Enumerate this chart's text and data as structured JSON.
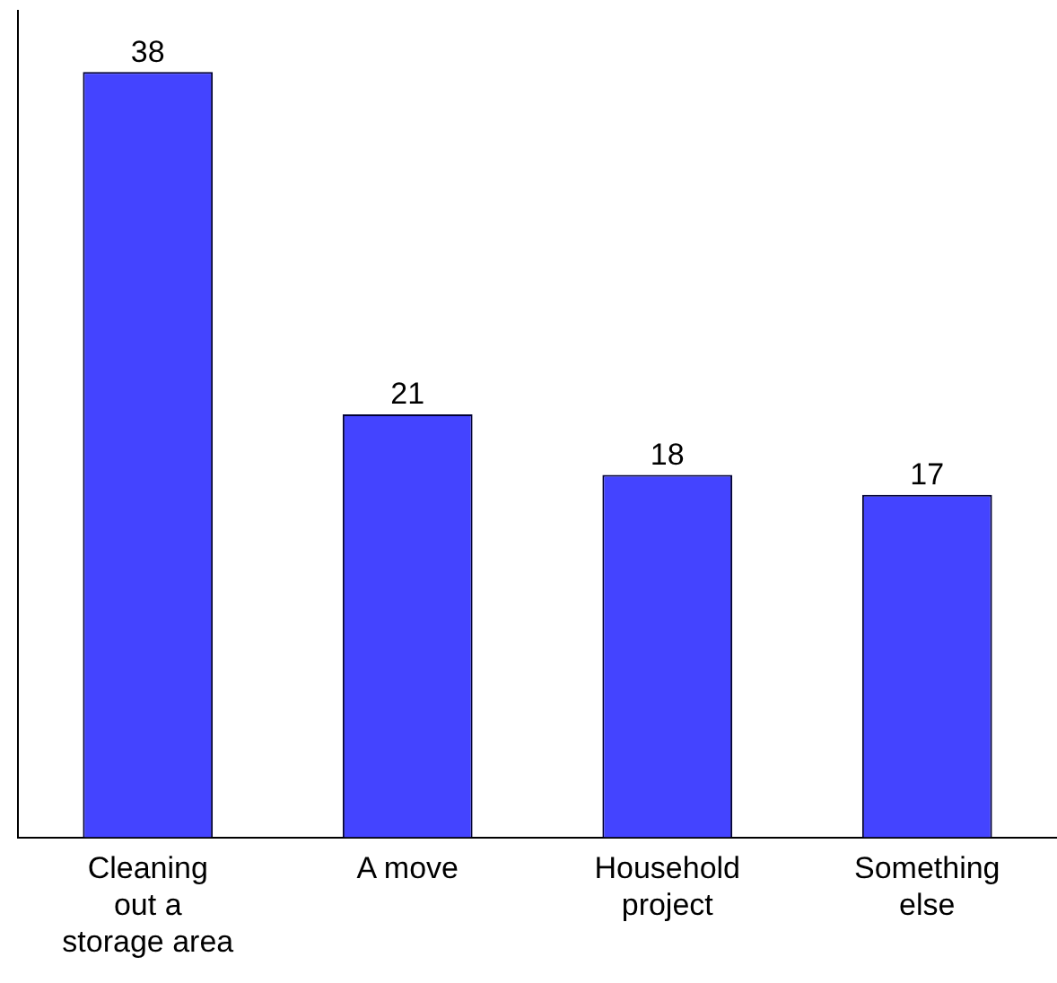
{
  "chart_data": {
    "type": "bar",
    "categories": [
      "Cleaning\nout a\nstorage area",
      "A move",
      "Household\nproject",
      "Something\nelse"
    ],
    "values": [
      38,
      21,
      18,
      17
    ],
    "color": "#4444ff",
    "data_labels": true,
    "grid": false,
    "legend": false,
    "tick_labels": "x"
  }
}
